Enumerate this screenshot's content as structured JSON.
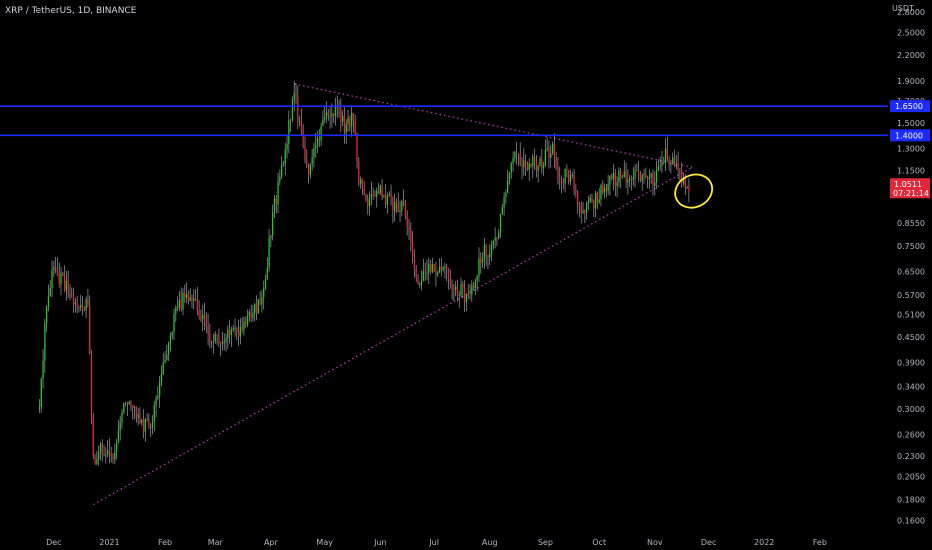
{
  "header": {
    "symbol": "XRP / TetherUS, 1D, BINANCE"
  },
  "colors": {
    "background": "#000000",
    "up": "#26c926",
    "down": "#e0283a",
    "wick": "#9aa0a6",
    "hline": "#1b2bff",
    "trendline": "#c23bc2",
    "highlight": "#ffeb3b",
    "price_tag": "#e0283a"
  },
  "chart_data": {
    "type": "candlestick",
    "price_scale": "log",
    "currency_label": "USDT",
    "y_ticks": [
      "2.8000",
      "2.5000",
      "2.2000",
      "1.9000",
      "1.7000",
      "1.5000",
      "1.3000",
      "1.1500",
      "1.0000",
      "0.8550",
      "0.7500",
      "0.6500",
      "0.5700",
      "0.5100",
      "0.4500",
      "0.3900",
      "0.3400",
      "0.3000",
      "0.2600",
      "0.2300",
      "0.2050",
      "0.1800",
      "0.1600"
    ],
    "x_ticks": [
      "Dec",
      "2021",
      "Feb",
      "Mar",
      "Apr",
      "May",
      "Jun",
      "Jul",
      "Aug",
      "Sep",
      "Oct",
      "Nov",
      "Dec",
      "2022",
      "Feb"
    ],
    "ylim": [
      0.15,
      2.9
    ],
    "xlim_days": [
      -30,
      465
    ],
    "horizontal_levels": [
      {
        "label": "1.6500",
        "value": 1.65
      },
      {
        "label": "1.4000",
        "value": 1.4
      }
    ],
    "trendlines": [
      {
        "name": "upper",
        "from": [
          "2021-04-14",
          1.87
        ],
        "to": [
          "2021-11-22",
          1.17
        ]
      },
      {
        "name": "lower",
        "from": [
          "2020-12-23",
          0.175
        ],
        "to": [
          "2021-11-22",
          1.17
        ]
      }
    ],
    "current_price": {
      "label": "1.0511",
      "countdown": "07:21:14"
    },
    "anchors": [
      [
        "2020-11-23",
        0.3
      ],
      [
        "2020-11-27",
        0.55
      ],
      [
        "2020-12-01",
        0.66
      ],
      [
        "2020-12-08",
        0.6
      ],
      [
        "2020-12-14",
        0.54
      ],
      [
        "2020-12-20",
        0.55
      ],
      [
        "2020-12-23",
        0.22
      ],
      [
        "2020-12-27",
        0.24
      ],
      [
        "2021-01-03",
        0.23
      ],
      [
        "2021-01-10",
        0.32
      ],
      [
        "2021-01-17",
        0.28
      ],
      [
        "2021-01-24",
        0.27
      ],
      [
        "2021-01-31",
        0.38
      ],
      [
        "2021-02-06",
        0.5
      ],
      [
        "2021-02-13",
        0.58
      ],
      [
        "2021-02-20",
        0.52
      ],
      [
        "2021-02-27",
        0.44
      ],
      [
        "2021-03-07",
        0.46
      ],
      [
        "2021-03-14",
        0.47
      ],
      [
        "2021-03-21",
        0.5
      ],
      [
        "2021-03-28",
        0.58
      ],
      [
        "2021-04-02",
        0.9
      ],
      [
        "2021-04-08",
        1.2
      ],
      [
        "2021-04-14",
        1.78
      ],
      [
        "2021-04-18",
        1.4
      ],
      [
        "2021-04-22",
        1.1
      ],
      [
        "2021-04-26",
        1.35
      ],
      [
        "2021-05-02",
        1.55
      ],
      [
        "2021-05-08",
        1.65
      ],
      [
        "2021-05-12",
        1.45
      ],
      [
        "2021-05-17",
        1.55
      ],
      [
        "2021-05-20",
        1.1
      ],
      [
        "2021-05-24",
        0.95
      ],
      [
        "2021-05-31",
        1.02
      ],
      [
        "2021-06-07",
        0.95
      ],
      [
        "2021-06-14",
        0.92
      ],
      [
        "2021-06-22",
        0.62
      ],
      [
        "2021-06-28",
        0.68
      ],
      [
        "2021-07-05",
        0.66
      ],
      [
        "2021-07-12",
        0.6
      ],
      [
        "2021-07-20",
        0.56
      ],
      [
        "2021-07-28",
        0.72
      ],
      [
        "2021-08-05",
        0.76
      ],
      [
        "2021-08-10",
        1.05
      ],
      [
        "2021-08-15",
        1.25
      ],
      [
        "2021-08-22",
        1.2
      ],
      [
        "2021-08-29",
        1.18
      ],
      [
        "2021-09-05",
        1.32
      ],
      [
        "2021-09-08",
        1.1
      ],
      [
        "2021-09-15",
        1.13
      ],
      [
        "2021-09-21",
        0.92
      ],
      [
        "2021-09-27",
        0.95
      ],
      [
        "2021-10-05",
        1.05
      ],
      [
        "2021-10-12",
        1.12
      ],
      [
        "2021-10-19",
        1.1
      ],
      [
        "2021-10-25",
        1.12
      ],
      [
        "2021-10-31",
        1.1
      ],
      [
        "2021-11-07",
        1.25
      ],
      [
        "2021-11-12",
        1.18
      ],
      [
        "2021-11-17",
        1.08
      ],
      [
        "2021-11-20",
        1.05
      ]
    ]
  }
}
